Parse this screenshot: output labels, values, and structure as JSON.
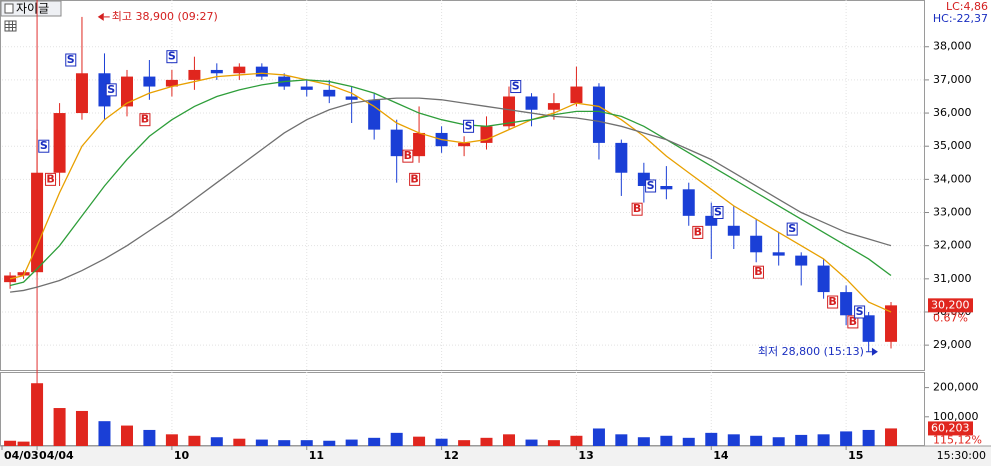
{
  "tab_title": "자이글",
  "indicator_lc": "LC:4,86",
  "indicator_hc": "HC:-22,37",
  "cursor_time": "15:30:00",
  "chart_data": {
    "type": "candlestick",
    "x": [
      8.8,
      8.9,
      9.0,
      9.167,
      9.333,
      9.5,
      9.667,
      9.833,
      10.0,
      10.167,
      10.333,
      10.5,
      10.667,
      10.833,
      11.0,
      11.167,
      11.333,
      11.5,
      11.667,
      11.833,
      12.0,
      12.167,
      12.333,
      12.5,
      12.667,
      12.833,
      13.0,
      13.167,
      13.333,
      13.5,
      13.667,
      13.833,
      14.0,
      14.167,
      14.333,
      14.5,
      14.667,
      14.833,
      15.0,
      15.167,
      15.333
    ],
    "open": [
      30900,
      31100,
      31200,
      34200,
      36000,
      37200,
      36200,
      37100,
      36800,
      37000,
      37300,
      37200,
      37400,
      37100,
      36800,
      36700,
      36500,
      36400,
      35500,
      34700,
      35400,
      35000,
      35100,
      35600,
      36500,
      36100,
      36300,
      36800,
      35100,
      34200,
      33800,
      33700,
      32900,
      32600,
      32300,
      31800,
      31700,
      31400,
      30600,
      29900,
      29100
    ],
    "high": [
      31200,
      31250,
      35500,
      36300,
      38900,
      37800,
      37300,
      37600,
      37300,
      37700,
      37500,
      37500,
      37500,
      37200,
      37000,
      37000,
      36800,
      36600,
      35800,
      36200,
      35600,
      35300,
      35900,
      36800,
      36600,
      36600,
      37400,
      36900,
      35200,
      34500,
      34400,
      33900,
      33300,
      33200,
      32800,
      32400,
      31800,
      31600,
      30800,
      30000,
      30300
    ],
    "low": [
      30700,
      31000,
      31100,
      33800,
      35800,
      35800,
      35900,
      36400,
      36500,
      36700,
      37000,
      37000,
      37000,
      36700,
      36500,
      36300,
      35700,
      35200,
      33900,
      34500,
      34800,
      34700,
      34900,
      35500,
      35600,
      35800,
      36200,
      34600,
      33500,
      33300,
      33400,
      32600,
      31600,
      31900,
      31500,
      31400,
      30800,
      30400,
      29600,
      28800,
      28900
    ],
    "close": [
      31100,
      31200,
      34200,
      36000,
      37200,
      36200,
      37100,
      36800,
      37000,
      37300,
      37200,
      37400,
      37100,
      36800,
      36700,
      36500,
      36400,
      35500,
      34700,
      35400,
      35000,
      35100,
      35600,
      36500,
      36100,
      36300,
      36800,
      35100,
      34200,
      33800,
      33700,
      32900,
      32600,
      32300,
      31800,
      31700,
      31400,
      30600,
      29900,
      29100,
      30200
    ],
    "up_color": "#e0261e",
    "down_color": "#1a3fd6",
    "lines": [
      {
        "color": "#e8a000",
        "values": [
          31000,
          31100,
          32000,
          33600,
          35000,
          35800,
          36300,
          36600,
          36800,
          36950,
          37100,
          37150,
          37200,
          37150,
          37000,
          36850,
          36600,
          36200,
          35700,
          35400,
          35200,
          35100,
          35200,
          35500,
          35800,
          36000,
          36300,
          36200,
          35800,
          35300,
          34700,
          34200,
          33700,
          33200,
          32800,
          32400,
          32000,
          31600,
          31000,
          30300,
          30000
        ]
      },
      {
        "color": "#2e9e3a",
        "values": [
          30800,
          30900,
          31300,
          32000,
          32900,
          33800,
          34600,
          35300,
          35800,
          36200,
          36500,
          36700,
          36850,
          36950,
          37000,
          36950,
          36800,
          36600,
          36300,
          36000,
          35800,
          35650,
          35600,
          35700,
          35800,
          35950,
          36050,
          36050,
          35900,
          35600,
          35200,
          34800,
          34400,
          34000,
          33600,
          33200,
          32800,
          32400,
          32000,
          31600,
          31100
        ]
      },
      {
        "color": "#707070",
        "values": [
          30600,
          30650,
          30750,
          30950,
          31250,
          31600,
          32000,
          32450,
          32900,
          33400,
          33900,
          34400,
          34900,
          35400,
          35800,
          36100,
          36300,
          36400,
          36450,
          36450,
          36400,
          36300,
          36200,
          36100,
          36000,
          35900,
          35850,
          35750,
          35600,
          35400,
          35200,
          34900,
          34600,
          34200,
          33800,
          33400,
          33000,
          32700,
          32400,
          32200,
          32000
        ]
      }
    ],
    "volume": [
      18000,
      15000,
      215000,
      130000,
      120000,
      85000,
      70000,
      55000,
      40000,
      35000,
      30000,
      25000,
      22000,
      20000,
      20000,
      18000,
      22000,
      28000,
      45000,
      32000,
      25000,
      20000,
      28000,
      40000,
      22000,
      20000,
      35000,
      60000,
      40000,
      30000,
      35000,
      28000,
      45000,
      40000,
      35000,
      30000,
      38000,
      40000,
      50000,
      55000,
      60203
    ],
    "xlim": [
      8.74,
      15.585
    ],
    "xticks": [
      {
        "value": 8.74,
        "label": "04/03"
      },
      {
        "value": 9,
        "label": "04/04"
      },
      10,
      11,
      12,
      13,
      14,
      15
    ],
    "ylim": [
      28250,
      39410
    ],
    "yticks": [
      {
        "value": 29000,
        "label": "29,000"
      },
      {
        "value": 30000,
        "label": "30,000"
      },
      {
        "value": 31000,
        "label": "31,000"
      },
      {
        "value": 32000,
        "label": "32,000"
      },
      {
        "value": 33000,
        "label": "33,000"
      },
      {
        "value": 34000,
        "label": "34,000"
      },
      {
        "value": 35000,
        "label": "35,000"
      },
      {
        "value": 36000,
        "label": "36,000"
      },
      {
        "value": 37000,
        "label": "37,000"
      },
      {
        "value": 38000,
        "label": "38,000"
      }
    ],
    "vlim": [
      0,
      250000
    ],
    "vticks": [
      {
        "value": 100000,
        "label": "100,000"
      },
      {
        "value": 200000,
        "label": "200,000"
      }
    ],
    "grid": true,
    "day_separator": 9,
    "signals": [
      {
        "label": "S",
        "x": 9.05,
        "price": 35000
      },
      {
        "label": "B",
        "x": 9.1,
        "price": 34000
      },
      {
        "label": "S",
        "x": 9.25,
        "price": 37600
      },
      {
        "label": "S",
        "x": 9.55,
        "price": 36700
      },
      {
        "label": "B",
        "x": 9.8,
        "price": 35800
      },
      {
        "label": "S",
        "x": 10.0,
        "price": 37700
      },
      {
        "label": "B",
        "x": 11.75,
        "price": 34700
      },
      {
        "label": "B",
        "x": 11.8,
        "price": 34000
      },
      {
        "label": "S",
        "x": 12.2,
        "price": 35600
      },
      {
        "label": "S",
        "x": 12.55,
        "price": 36800
      },
      {
        "label": "B",
        "x": 13.45,
        "price": 33100
      },
      {
        "label": "S",
        "x": 13.55,
        "price": 33800
      },
      {
        "label": "B",
        "x": 13.9,
        "price": 32400
      },
      {
        "label": "S",
        "x": 14.05,
        "price": 33000
      },
      {
        "label": "B",
        "x": 14.35,
        "price": 31200
      },
      {
        "label": "S",
        "x": 14.6,
        "price": 32500
      },
      {
        "label": "B",
        "x": 14.9,
        "price": 30300
      },
      {
        "label": "B",
        "x": 15.05,
        "price": 29700
      },
      {
        "label": "S",
        "x": 15.1,
        "price": 30000
      }
    ],
    "buy_color": "#d42020",
    "sell_color": "#1a2fc0",
    "high_note": {
      "label": "최고 38,900 (09:27)",
      "x": 9.45,
      "price": 38900
    },
    "low_note": {
      "label": "최저 28,800 (15:13)",
      "x": 15.236,
      "price": 28800
    },
    "last_price": {
      "value": 30200,
      "label": "30,200",
      "change": "0.67%"
    },
    "last_volume": {
      "value": 60203,
      "label": "60,203",
      "change": "115,12%"
    }
  }
}
